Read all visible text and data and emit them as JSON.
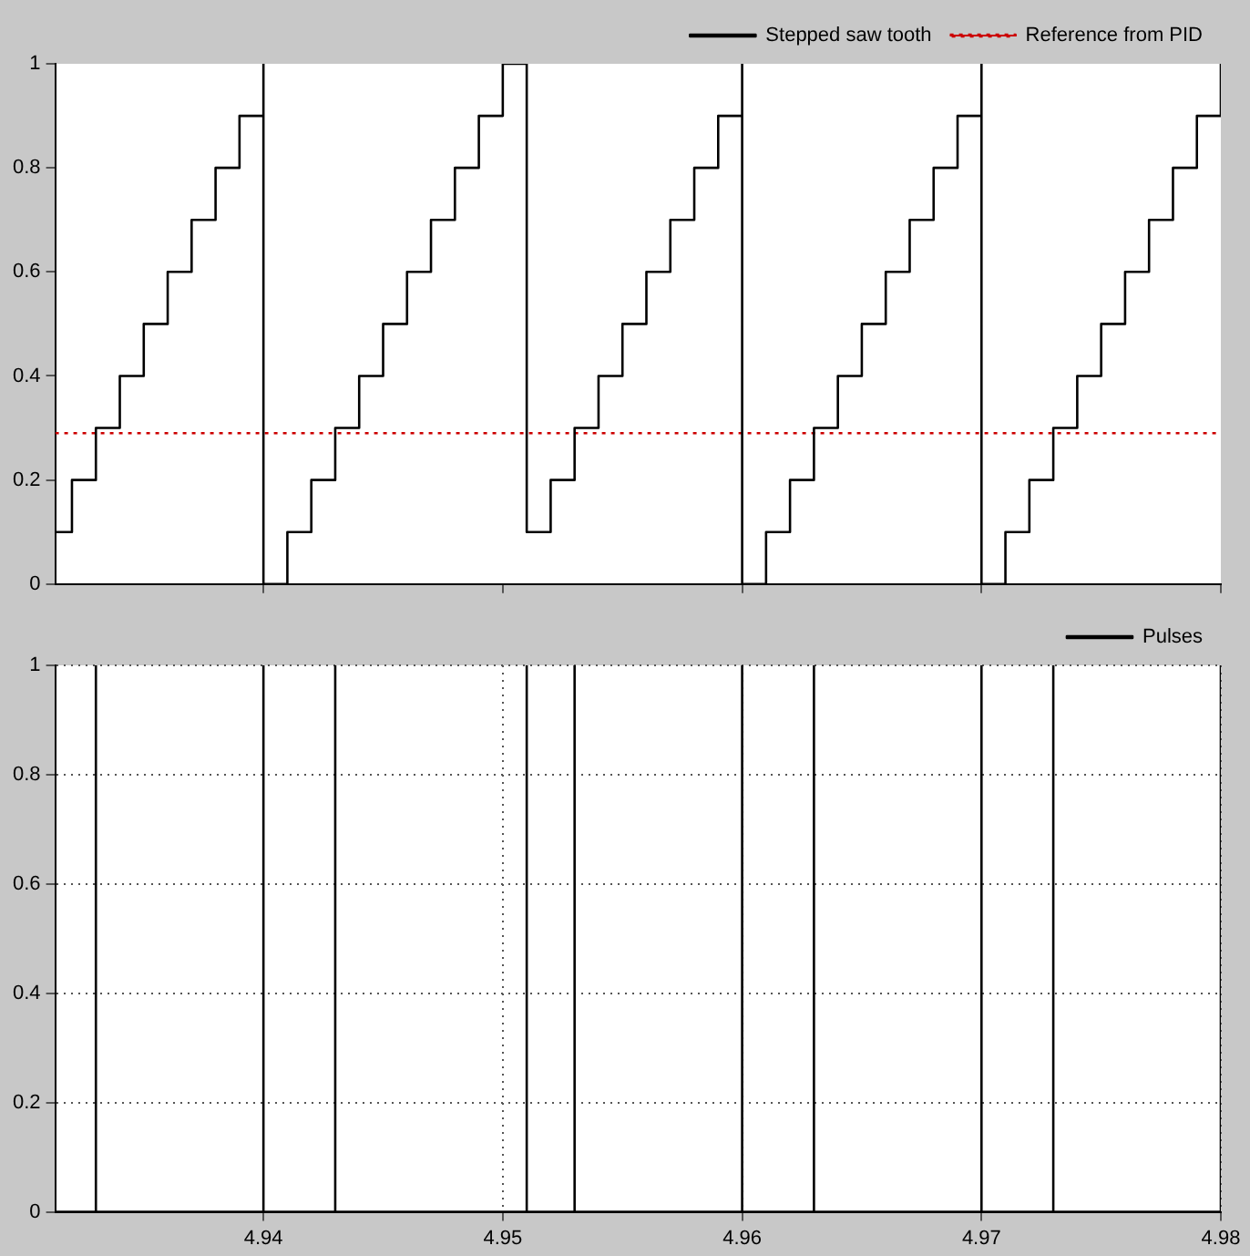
{
  "chart_data": [
    {
      "type": "step",
      "xlim": [
        4.9313,
        4.98
      ],
      "xticks": [
        4.94,
        4.95,
        4.96,
        4.97,
        4.98
      ],
      "ylim": [
        0,
        1
      ],
      "yticks": [
        0,
        0.2,
        0.4,
        0.6,
        0.8,
        1
      ],
      "grid": false,
      "legend": "top right",
      "tick_labels": "y",
      "series": [
        {
          "name": "Stepped saw tooth",
          "color": "#000000",
          "line_style": "solid",
          "x": [
            4.9313,
            4.932,
            4.933,
            4.934,
            4.935,
            4.936,
            4.937,
            4.938,
            4.939,
            4.94,
            4.94,
            4.941,
            4.942,
            4.943,
            4.944,
            4.945,
            4.946,
            4.947,
            4.948,
            4.949,
            4.95,
            4.951,
            4.952,
            4.953,
            4.954,
            4.955,
            4.956,
            4.957,
            4.958,
            4.959,
            4.96,
            4.96,
            4.961,
            4.962,
            4.963,
            4.964,
            4.965,
            4.966,
            4.967,
            4.968,
            4.969,
            4.97,
            4.97,
            4.971,
            4.972,
            4.973,
            4.974,
            4.975,
            4.976,
            4.977,
            4.978,
            4.979,
            4.98
          ],
          "values": [
            0.1,
            0.2,
            0.3,
            0.4,
            0.5,
            0.6,
            0.7,
            0.8,
            0.9,
            1,
            0,
            0.1,
            0.2,
            0.3,
            0.4,
            0.5,
            0.6,
            0.7,
            0.8,
            0.9,
            1,
            0.1,
            0.2,
            0.3,
            0.4,
            0.5,
            0.6,
            0.7,
            0.8,
            0.9,
            1,
            0,
            0.1,
            0.2,
            0.3,
            0.4,
            0.5,
            0.6,
            0.7,
            0.8,
            0.9,
            1,
            0,
            0.1,
            0.2,
            0.3,
            0.4,
            0.5,
            0.6,
            0.7,
            0.8,
            0.9,
            1
          ]
        },
        {
          "name": "Reference from PID",
          "type": "line",
          "color": "#cc0000",
          "line_style": "dotted",
          "x": [
            4.9313,
            4.98
          ],
          "values": [
            0.29,
            0.29
          ]
        }
      ]
    },
    {
      "type": "step",
      "xlim": [
        4.9313,
        4.98
      ],
      "xticks": [
        4.94,
        4.95,
        4.96,
        4.97,
        4.98
      ],
      "ylim": [
        0,
        1
      ],
      "yticks": [
        0,
        0.2,
        0.4,
        0.6,
        0.8,
        1
      ],
      "grid": true,
      "legend": "top right",
      "series": [
        {
          "name": "Pulses",
          "color": "#000000",
          "line_style": "solid",
          "x": [
            4.9313,
            4.933,
            4.933,
            4.94,
            4.94,
            4.943,
            4.943,
            4.951,
            4.951,
            4.953,
            4.953,
            4.96,
            4.96,
            4.963,
            4.963,
            4.97,
            4.97,
            4.973,
            4.973,
            4.98,
            4.98
          ],
          "values": [
            0,
            1,
            0,
            1,
            0,
            1,
            0,
            1,
            0,
            1,
            0,
            1,
            0,
            1,
            0,
            1,
            0,
            1,
            0,
            1,
            0
          ]
        }
      ]
    }
  ]
}
